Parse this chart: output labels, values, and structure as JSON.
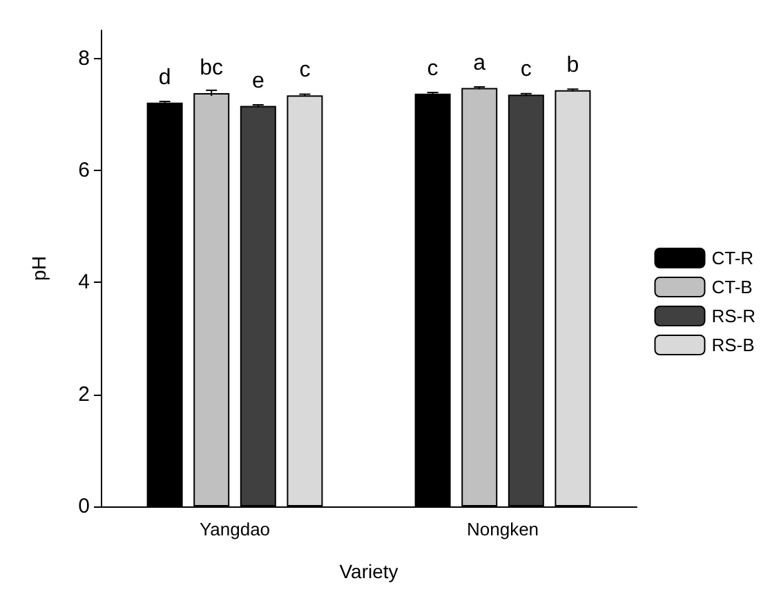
{
  "chart_data": {
    "type": "bar",
    "xlabel": "Variety",
    "ylabel": "pH",
    "categories": [
      "Yangdao",
      "Nongken"
    ],
    "series": [
      {
        "name": "CT-R",
        "color": "#000000",
        "values": [
          7.21,
          7.37
        ],
        "errors": [
          0.02,
          0.02
        ],
        "value_labels": [
          "d",
          "c"
        ]
      },
      {
        "name": "CT-B",
        "color": "#c0c0c0",
        "values": [
          7.38,
          7.47
        ],
        "errors": [
          0.05,
          0.02
        ],
        "value_labels": [
          "bc",
          "a"
        ]
      },
      {
        "name": "RS-R",
        "color": "#404040",
        "values": [
          7.15,
          7.35
        ],
        "errors": [
          0.02,
          0.02
        ],
        "value_labels": [
          "e",
          "c"
        ]
      },
      {
        "name": "RS-B",
        "color": "#d9d9d9",
        "values": [
          7.34,
          7.43
        ],
        "errors": [
          0.02,
          0.02
        ],
        "value_labels": [
          "c",
          "b"
        ]
      }
    ],
    "ylim": [
      0,
      8.5
    ],
    "yticks": [
      0,
      2,
      4,
      6,
      8
    ],
    "grid": false,
    "legend": "right"
  }
}
